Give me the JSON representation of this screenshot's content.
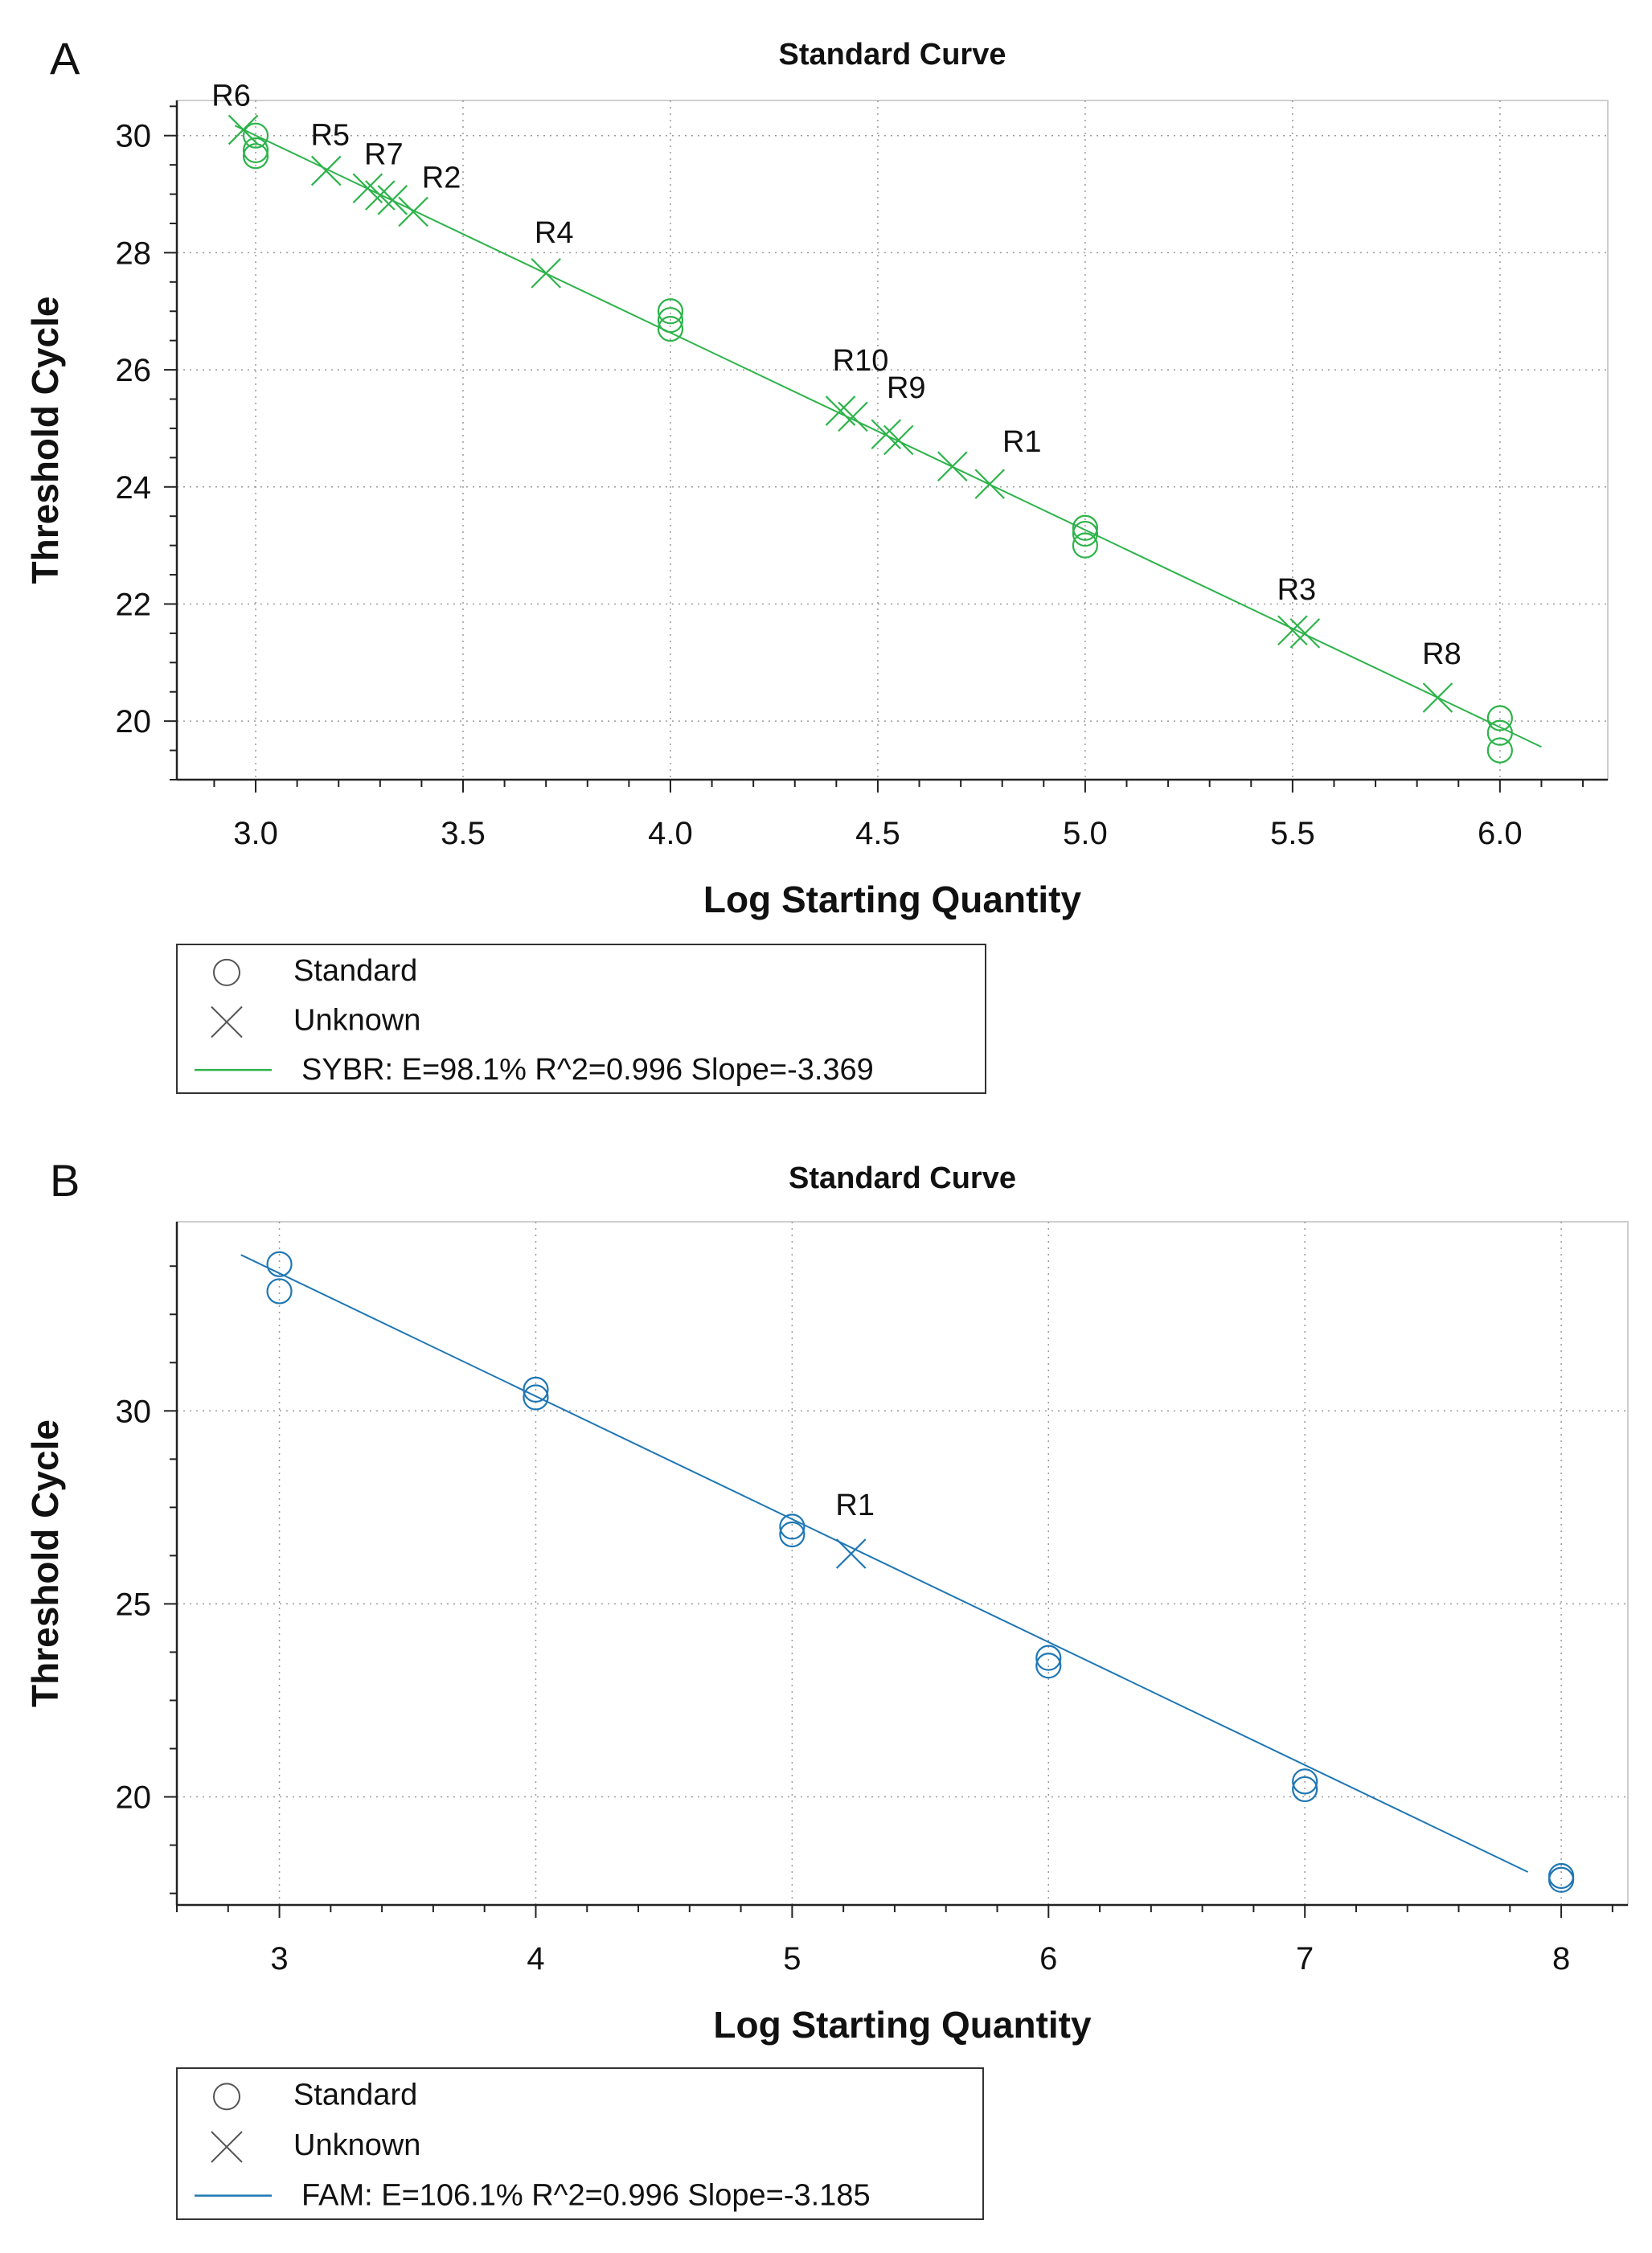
{
  "chart_data": [
    {
      "panel": "A",
      "type": "scatter",
      "title": "Standard Curve",
      "xlabel": "Log Starting Quantity",
      "ylabel": "Threshold Cycle",
      "xlim": [
        2.81,
        6.26
      ],
      "ylim": [
        19.0,
        30.6
      ],
      "xticks": [
        3.0,
        3.5,
        4.0,
        4.5,
        5.0,
        5.5,
        6.0
      ],
      "xtick_labels": [
        "3.0",
        "3.5",
        "4.0",
        "4.5",
        "5.0",
        "5.5",
        "6.0"
      ],
      "yticks": [
        20,
        22,
        24,
        26,
        28,
        30
      ],
      "ytick_labels": [
        "20",
        "22",
        "24",
        "26",
        "28",
        "30"
      ],
      "grid": true,
      "color": "#2db34a",
      "line": {
        "x1": 2.95,
        "x2": 6.1,
        "slope": -3.369,
        "intercept": 40.11
      },
      "standards": [
        {
          "x": 3.0,
          "y": 30.0
        },
        {
          "x": 3.0,
          "y": 29.75
        },
        {
          "x": 3.0,
          "y": 29.65
        },
        {
          "x": 4.0,
          "y": 27.0
        },
        {
          "x": 4.0,
          "y": 26.85
        },
        {
          "x": 4.0,
          "y": 26.7
        },
        {
          "x": 5.0,
          "y": 23.3
        },
        {
          "x": 5.0,
          "y": 23.2
        },
        {
          "x": 5.0,
          "y": 23.0
        },
        {
          "x": 6.0,
          "y": 20.05
        },
        {
          "x": 6.0,
          "y": 19.8
        },
        {
          "x": 6.0,
          "y": 19.5
        }
      ],
      "unknowns": [
        {
          "label": "R6",
          "x": 2.97,
          "y": 30.1
        },
        {
          "label": "R5",
          "x": 3.17,
          "y": 29.4
        },
        {
          "label": "R7",
          "x": 3.27,
          "y": 29.1
        },
        {
          "label": "",
          "x": 3.3,
          "y": 28.98
        },
        {
          "label": "",
          "x": 3.33,
          "y": 28.9
        },
        {
          "label": "R2",
          "x": 3.38,
          "y": 28.7
        },
        {
          "label": "R4",
          "x": 3.7,
          "y": 27.65
        },
        {
          "label": "R10",
          "x": 4.41,
          "y": 25.3
        },
        {
          "label": "",
          "x": 4.44,
          "y": 25.2
        },
        {
          "label": "R9",
          "x": 4.52,
          "y": 24.9
        },
        {
          "label": "",
          "x": 4.55,
          "y": 24.8
        },
        {
          "label": "",
          "x": 4.68,
          "y": 24.35
        },
        {
          "label": "R1",
          "x": 4.77,
          "y": 24.05
        },
        {
          "label": "R3",
          "x": 5.5,
          "y": 21.55
        },
        {
          "label": "",
          "x": 5.53,
          "y": 21.5
        },
        {
          "label": "R8",
          "x": 5.85,
          "y": 20.4
        }
      ],
      "legend": {
        "standard": "Standard",
        "unknown": "Unknown",
        "series": "SYBR: E=98.1% R^2=0.996 Slope=-3.369"
      }
    },
    {
      "panel": "B",
      "type": "scatter",
      "title": "Standard Curve",
      "xlabel": "Log Starting Quantity",
      "ylabel": "Threshold Cycle",
      "xlim": [
        2.6,
        8.26
      ],
      "ylim": [
        17.2,
        34.9
      ],
      "xticks": [
        3,
        4,
        5,
        6,
        7,
        8
      ],
      "xtick_labels": [
        "3",
        "4",
        "5",
        "6",
        "7",
        "8"
      ],
      "yticks": [
        20,
        25,
        30
      ],
      "ytick_labels": [
        "20",
        "25",
        "30"
      ],
      "grid": true,
      "color": "#1f77b4",
      "line": {
        "x1": 2.85,
        "x2": 7.87,
        "slope": -3.185,
        "intercept": 43.12
      },
      "standards": [
        {
          "x": 3.0,
          "y": 33.8
        },
        {
          "x": 3.0,
          "y": 33.1
        },
        {
          "x": 4.0,
          "y": 30.55
        },
        {
          "x": 4.0,
          "y": 30.35
        },
        {
          "x": 5.0,
          "y": 27.0
        },
        {
          "x": 5.0,
          "y": 26.8
        },
        {
          "x": 6.0,
          "y": 23.6
        },
        {
          "x": 6.0,
          "y": 23.4
        },
        {
          "x": 7.0,
          "y": 20.4
        },
        {
          "x": 7.0,
          "y": 20.2
        },
        {
          "x": 8.0,
          "y": 17.95
        },
        {
          "x": 8.0,
          "y": 17.85
        }
      ],
      "unknowns": [
        {
          "label": "R1",
          "x": 5.23,
          "y": 26.3
        }
      ],
      "legend": {
        "standard": "Standard",
        "unknown": "Unknown",
        "series": "FAM: E=106.1% R^2=0.996 Slope=-3.185"
      }
    }
  ],
  "panel_labels": [
    "A",
    "B"
  ]
}
